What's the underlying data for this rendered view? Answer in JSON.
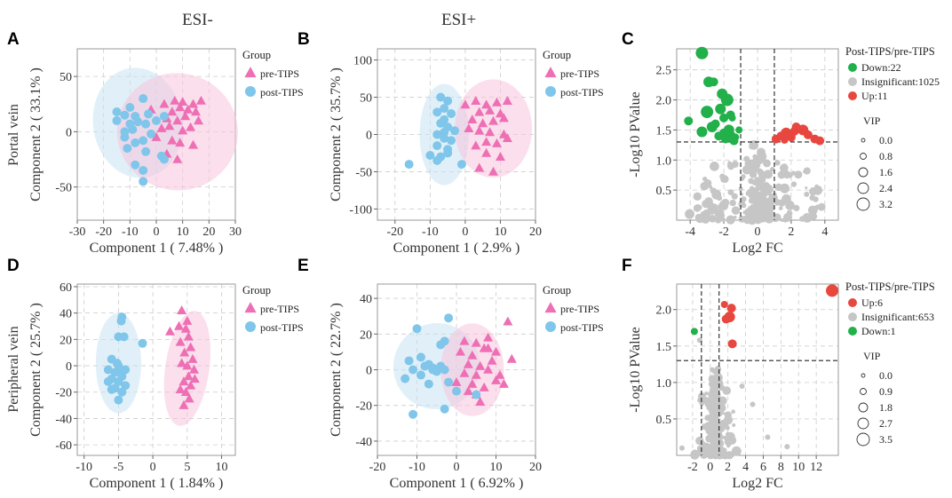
{
  "headers": {
    "esi_minus": "ESI-",
    "esi_plus": "ESI+"
  },
  "row_labels": {
    "top": "Portal vein",
    "bottom": "Peripheral vein"
  },
  "colors": {
    "pink": "#ee6fb4",
    "blue": "#7fc6ea",
    "pink_fill": "#f7c5dd",
    "blue_fill": "#c9e3f3",
    "green": "#22b04b",
    "red": "#e8473f",
    "gray": "#c6c6c6"
  },
  "chart_data": [
    {
      "id": "A",
      "type": "scatter",
      "xlabel": "Component  1  ( 7.48% )",
      "ylabel": "Component  2  ( 33.1% )",
      "xlim": [
        -30,
        30
      ],
      "ylim": [
        -80,
        75
      ],
      "xticks": [
        "-30",
        "-20",
        "-10",
        "0",
        "10",
        "20",
        "30"
      ],
      "xtick_values": [
        -30,
        -20,
        -10,
        0,
        10,
        20,
        30
      ],
      "yticks": [
        "50",
        "0",
        "-50"
      ],
      "ytick_values": [
        50,
        0,
        -50
      ],
      "legend_title": "Group",
      "legend": [
        "pre-TIPS",
        "post-TIPS"
      ],
      "ellipses": [
        {
          "group": "post-TIPS",
          "cx": -7,
          "cy": 8,
          "rx": 17,
          "ry": 50,
          "angle": -8
        },
        {
          "group": "pre-TIPS",
          "cx": 8,
          "cy": 0,
          "rx": 23,
          "ry": 53,
          "angle": 12
        }
      ],
      "series": [
        {
          "name": "pre-TIPS",
          "marker": "triangle",
          "x": [
            -2,
            3,
            7,
            10,
            14,
            17,
            6,
            9,
            12,
            15,
            4,
            8,
            11,
            16,
            2,
            5,
            10,
            13,
            0,
            6,
            9,
            14,
            4,
            8
          ],
          "y": [
            20,
            25,
            28,
            27,
            25,
            28,
            18,
            22,
            20,
            18,
            12,
            10,
            14,
            10,
            3,
            5,
            1,
            4,
            -5,
            -8,
            -10,
            -12,
            -20,
            -25
          ]
        },
        {
          "name": "post-TIPS",
          "marker": "circle",
          "x": [
            -15,
            -10,
            -5,
            -12,
            -8,
            -3,
            0,
            3,
            -15,
            -10,
            -7,
            -4,
            -12,
            -9,
            -2,
            -12,
            -8,
            -5,
            -11,
            -4,
            3,
            -8,
            -5,
            2,
            -5
          ],
          "y": [
            18,
            22,
            30,
            15,
            14,
            16,
            10,
            14,
            10,
            7,
            9,
            7,
            0,
            2,
            -2,
            -5,
            -10,
            -8,
            -15,
            -18,
            -25,
            -30,
            -35,
            -22,
            -45
          ]
        }
      ]
    },
    {
      "id": "B",
      "type": "scatter",
      "xlabel": "Component  1  ( 2.9% )",
      "ylabel": "Component  2  ( 35.7% )",
      "xlim": [
        -25,
        20
      ],
      "ylim": [
        -115,
        115
      ],
      "xticks": [
        "-20",
        "-10",
        "0",
        "10",
        "20"
      ],
      "xtick_values": [
        -20,
        -10,
        0,
        10,
        20
      ],
      "yticks": [
        "100",
        "50",
        "0",
        "-50",
        "-100"
      ],
      "ytick_values": [
        100,
        50,
        0,
        -50,
        -100
      ],
      "legend_title": "Group",
      "legend": [
        "pre-TIPS",
        "post-TIPS"
      ],
      "ellipses": [
        {
          "group": "post-TIPS",
          "cx": -6,
          "cy": 0,
          "rx": 7,
          "ry": 68,
          "angle": 0
        },
        {
          "group": "pre-TIPS",
          "cx": 8,
          "cy": 8,
          "rx": 11,
          "ry": 66,
          "angle": 0
        }
      ],
      "series": [
        {
          "name": "pre-TIPS",
          "marker": "triangle",
          "x": [
            0,
            3,
            6,
            9,
            12,
            4,
            7,
            10,
            2,
            5,
            8,
            11,
            1,
            4,
            7,
            11,
            12,
            6,
            9,
            3,
            6,
            10,
            8,
            4
          ],
          "y": [
            40,
            45,
            40,
            43,
            45,
            30,
            32,
            28,
            20,
            15,
            18,
            22,
            8,
            5,
            3,
            0,
            -5,
            -10,
            -12,
            -15,
            -25,
            -30,
            -50,
            -45
          ]
        },
        {
          "name": "post-TIPS",
          "marker": "circle",
          "x": [
            -7,
            -5,
            -6,
            -8,
            -4,
            -6,
            -7,
            -5,
            -3,
            -8,
            -6,
            -4,
            -8,
            -5,
            -10,
            -7,
            -5,
            -8,
            -1,
            -16,
            -6
          ],
          "y": [
            50,
            45,
            35,
            30,
            28,
            20,
            15,
            10,
            5,
            0,
            -5,
            -8,
            -15,
            -20,
            -28,
            -30,
            -25,
            -35,
            -40,
            -40,
            3
          ]
        }
      ]
    },
    {
      "id": "C",
      "type": "scatter",
      "subtype": "volcano",
      "xlabel": "Log2  FC",
      "ylabel": "-Log10  PValue",
      "xlim": [
        -4.8,
        4.8
      ],
      "ylim": [
        0,
        2.85
      ],
      "xticks": [
        "-4",
        "-2",
        "0",
        "2",
        "4"
      ],
      "xtick_values": [
        -4,
        -2,
        0,
        2,
        4
      ],
      "yticks": [
        "2.5",
        "2.0",
        "1.5",
        "1.0",
        "0.5"
      ],
      "ytick_values": [
        2.5,
        2.0,
        1.5,
        1.0,
        0.5
      ],
      "threshold_x": [
        -1,
        1
      ],
      "threshold_y": 1.3,
      "legend_title": "Post-TIPS/pre-TIPS",
      "legend": [
        {
          "label": "Down:22",
          "color": "#22b04b"
        },
        {
          "label": "Insignificant:1025",
          "color": "#c6c6c6"
        },
        {
          "label": "Up:11",
          "color": "#e8473f"
        }
      ],
      "vip_title": "VIP",
      "vip_labels": [
        "0.0",
        "0.8",
        "1.6",
        "2.4",
        "3.2"
      ],
      "series": [
        {
          "name": "Down",
          "color": "#22b04b",
          "x": [
            -3.3,
            -2.9,
            -2.6,
            -2.1,
            -1.8,
            -1.6,
            -2.2,
            -1.5,
            -4.1,
            -3.0,
            -2.5,
            -1.7,
            -2.0,
            -1.3,
            -2.7,
            -2.3,
            -1.9,
            -1.6,
            -1.4,
            -3.3,
            -2.0,
            -1.1
          ],
          "y": [
            2.78,
            2.3,
            2.3,
            2.1,
            2.0,
            1.75,
            1.85,
            1.7,
            1.65,
            1.8,
            1.6,
            1.5,
            1.45,
            1.38,
            1.55,
            1.4,
            1.35,
            1.4,
            1.32,
            1.47,
            1.7,
            1.5
          ],
          "r": [
            7,
            6,
            5,
            6,
            7,
            5,
            6,
            4,
            5,
            7,
            5,
            6,
            5,
            4,
            6,
            5,
            5,
            6,
            5,
            6,
            5,
            4
          ]
        },
        {
          "name": "Up",
          "color": "#e8473f",
          "x": [
            1.1,
            1.4,
            1.7,
            2.0,
            2.3,
            2.7,
            3.0,
            3.4,
            3.7,
            1.6,
            2.2
          ],
          "y": [
            1.35,
            1.4,
            1.45,
            1.38,
            1.55,
            1.5,
            1.42,
            1.35,
            1.32,
            1.33,
            1.48
          ],
          "r": [
            5,
            5,
            6,
            5,
            5,
            6,
            5,
            5,
            5,
            4,
            5
          ]
        }
      ]
    },
    {
      "id": "D",
      "type": "scatter",
      "xlabel": "Component  1  ( 1.84% )",
      "ylabel": "Component  2  ( 25.7% )",
      "xlim": [
        -11,
        12
      ],
      "ylim": [
        -68,
        62
      ],
      "xticks": [
        "-10",
        "-5",
        "0",
        "5",
        "10"
      ],
      "xtick_values": [
        -10,
        -5,
        0,
        5,
        10
      ],
      "yticks": [
        "60",
        "40",
        "20",
        "0",
        "-20",
        "-40",
        "-60"
      ],
      "ytick_values": [
        60,
        40,
        20,
        0,
        -20,
        -40,
        -60
      ],
      "legend_title": "Group",
      "legend": [
        "pre-TIPS",
        "post-TIPS"
      ],
      "ellipses": [
        {
          "group": "post-TIPS",
          "cx": -5,
          "cy": 2,
          "rx": 3.3,
          "ry": 38,
          "angle": 0
        },
        {
          "group": "pre-TIPS",
          "cx": 5,
          "cy": -2,
          "rx": 3.2,
          "ry": 44,
          "angle": 8
        }
      ],
      "series": [
        {
          "name": "pre-TIPS",
          "marker": "triangle",
          "x": [
            4.2,
            2.5,
            3.8,
            4.8,
            5.2,
            4.0,
            5.5,
            4.6,
            5.8,
            4.2,
            5.0,
            6.0,
            5.2,
            4.5,
            5.5,
            4.8,
            5.3,
            4.0,
            6.1,
            5.0,
            4.5
          ],
          "y": [
            42,
            26,
            30,
            28,
            22,
            18,
            14,
            10,
            5,
            2,
            0,
            -3,
            -8,
            -12,
            -15,
            -20,
            -25,
            -18,
            -10,
            34,
            -30
          ]
        },
        {
          "name": "post-TIPS",
          "marker": "circle",
          "x": [
            -4.5,
            -4.6,
            -5.0,
            -4.2,
            -1.5,
            -6.0,
            -5.0,
            -4.0,
            -6.5,
            -5.5,
            -4.5,
            -6.0,
            -5.0,
            -4.0,
            -5.5,
            -6.5,
            -4.5,
            -5.0,
            -6.0,
            -5.2,
            -4.8
          ],
          "y": [
            37,
            34,
            22,
            22,
            17,
            5,
            0,
            -3,
            -3,
            -5,
            -8,
            -10,
            -12,
            -15,
            -17,
            -12,
            -20,
            -26,
            -18,
            2,
            -5
          ]
        }
      ]
    },
    {
      "id": "E",
      "type": "scatter",
      "xlabel": "Component  1  ( 6.92% )",
      "ylabel": "Component  2  ( 22.7% )",
      "xlim": [
        -20,
        20
      ],
      "ylim": [
        -48,
        48
      ],
      "xticks": [
        "-20",
        "-10",
        "0",
        "10",
        "20"
      ],
      "xtick_values": [
        -20,
        -10,
        0,
        10,
        20
      ],
      "yticks": [
        "40",
        "20",
        "0",
        "-20",
        "-40"
      ],
      "ytick_values": [
        40,
        20,
        0,
        -20,
        -40
      ],
      "legend_title": "Group",
      "legend": [
        "pre-TIPS",
        "post-TIPS"
      ],
      "ellipses": [
        {
          "group": "post-TIPS",
          "cx": -5,
          "cy": 2,
          "rx": 11,
          "ry": 24,
          "angle": -30
        },
        {
          "group": "pre-TIPS",
          "cx": 4,
          "cy": 0,
          "rx": 8,
          "ry": 26,
          "angle": 0
        }
      ],
      "series": [
        {
          "name": "pre-TIPS",
          "marker": "triangle",
          "x": [
            2,
            5,
            8,
            13,
            1,
            4,
            7,
            10,
            3,
            6,
            9,
            14,
            2,
            5,
            8,
            11,
            0,
            4,
            7,
            10,
            12,
            5,
            3,
            6,
            8
          ],
          "y": [
            16,
            15,
            18,
            27,
            10,
            8,
            12,
            10,
            3,
            2,
            5,
            6,
            -2,
            -3,
            0,
            -3,
            -7,
            -8,
            -10,
            -6,
            -8,
            -14,
            -12,
            -18,
            12
          ]
        },
        {
          "name": "post-TIPS",
          "marker": "circle",
          "x": [
            -10,
            -2,
            -4,
            -3,
            -12,
            -9,
            -7,
            -6,
            -4,
            -11,
            -8,
            -5,
            -3,
            -13,
            -9,
            -6,
            -2,
            5,
            0,
            -11,
            -3,
            -7
          ],
          "y": [
            23,
            29,
            14,
            16,
            5,
            7,
            3,
            0,
            2,
            0,
            2,
            -1,
            0,
            -5,
            -3,
            1,
            -7,
            -14,
            -12,
            -25,
            -22,
            -8
          ]
        }
      ]
    },
    {
      "id": "F",
      "type": "scatter",
      "subtype": "volcano",
      "xlabel": "Log2  FC",
      "ylabel": "-Log10  PValue",
      "xlim": [
        -3.8,
        14.5
      ],
      "ylim": [
        0,
        2.35
      ],
      "xticks": [
        "-2",
        "0",
        "2",
        "4",
        "6",
        "8",
        "10",
        "12"
      ],
      "xtick_values": [
        -2,
        0,
        2,
        4,
        6,
        8,
        10,
        12
      ],
      "yticks": [
        "2.0",
        "1.5",
        "1.0",
        "0.5"
      ],
      "ytick_values": [
        2.0,
        1.5,
        1.0,
        0.5
      ],
      "threshold_x": [
        -1,
        1
      ],
      "threshold_y": 1.3,
      "legend_title": "Post-TIPS/pre-TIPS",
      "legend": [
        {
          "label": "Up:6",
          "color": "#e8473f"
        },
        {
          "label": "Insignificant:653",
          "color": "#c6c6c6"
        },
        {
          "label": "Down:1",
          "color": "#22b04b"
        }
      ],
      "vip_title": "VIP",
      "vip_labels": [
        "0.0",
        "0.9",
        "1.8",
        "2.7",
        "3.5"
      ],
      "series": [
        {
          "name": "Down",
          "color": "#22b04b",
          "x": [
            -1.8
          ],
          "y": [
            1.7
          ],
          "r": [
            4
          ]
        },
        {
          "name": "Up",
          "color": "#e8473f",
          "x": [
            1.6,
            2.4,
            2.2,
            1.8,
            2.5,
            13.8
          ],
          "y": [
            2.07,
            2.02,
            1.9,
            1.87,
            1.53,
            2.26
          ],
          "r": [
            4,
            5,
            6,
            5,
            5,
            7
          ]
        }
      ]
    }
  ]
}
